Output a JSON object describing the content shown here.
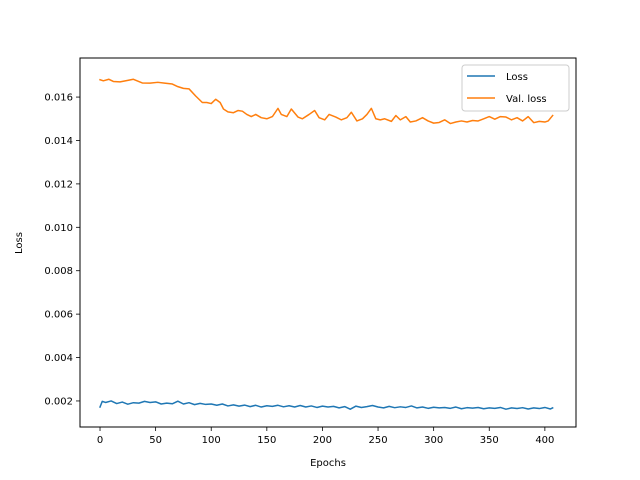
{
  "chart_data": {
    "type": "line",
    "title": "",
    "xlabel": "Epochs",
    "ylabel": "Loss",
    "xlim": [
      -18,
      428
    ],
    "ylim": [
      0.0008,
      0.0178
    ],
    "xticks": [
      0,
      50,
      100,
      150,
      200,
      250,
      300,
      350,
      400
    ],
    "yticks": [
      0.002,
      0.004,
      0.006,
      0.008,
      0.01,
      0.012,
      0.014,
      0.016
    ],
    "ytick_labels": [
      "0.002",
      "0.004",
      "0.006",
      "0.008",
      "0.010",
      "0.012",
      "0.014",
      "0.016"
    ],
    "grid": false,
    "legend_position": "top-right",
    "series": [
      {
        "name": "Loss",
        "color": "#1f77b4",
        "x": [
          0,
          2,
          5,
          10,
          15,
          20,
          25,
          30,
          35,
          40,
          45,
          50,
          55,
          60,
          65,
          70,
          75,
          80,
          85,
          90,
          95,
          100,
          105,
          110,
          115,
          120,
          125,
          130,
          135,
          140,
          145,
          150,
          155,
          160,
          165,
          170,
          175,
          180,
          185,
          190,
          195,
          200,
          205,
          210,
          215,
          220,
          225,
          230,
          235,
          240,
          245,
          250,
          255,
          260,
          265,
          270,
          275,
          280,
          285,
          290,
          295,
          300,
          305,
          310,
          315,
          320,
          325,
          330,
          335,
          340,
          345,
          350,
          355,
          360,
          365,
          370,
          375,
          380,
          385,
          390,
          395,
          400,
          405,
          407
        ],
        "values": [
          0.00172,
          0.00198,
          0.00193,
          0.002,
          0.00188,
          0.00195,
          0.00185,
          0.00192,
          0.0019,
          0.00198,
          0.00193,
          0.00196,
          0.00186,
          0.0019,
          0.00187,
          0.00199,
          0.00186,
          0.00192,
          0.00183,
          0.00189,
          0.00184,
          0.00186,
          0.0018,
          0.00186,
          0.00177,
          0.00182,
          0.00176,
          0.00181,
          0.00174,
          0.0018,
          0.00172,
          0.00178,
          0.00175,
          0.0018,
          0.00173,
          0.00178,
          0.00172,
          0.00179,
          0.00172,
          0.00177,
          0.0017,
          0.00176,
          0.00172,
          0.00175,
          0.00168,
          0.00174,
          0.00162,
          0.00176,
          0.0017,
          0.00174,
          0.00179,
          0.00172,
          0.00168,
          0.00175,
          0.00169,
          0.00173,
          0.0017,
          0.00177,
          0.00168,
          0.00172,
          0.00166,
          0.00171,
          0.00168,
          0.0017,
          0.00166,
          0.00172,
          0.00164,
          0.00169,
          0.00167,
          0.0017,
          0.00164,
          0.00168,
          0.00166,
          0.0017,
          0.00162,
          0.00168,
          0.00165,
          0.00169,
          0.00163,
          0.00168,
          0.00165,
          0.0017,
          0.00163,
          0.00168
        ]
      },
      {
        "name": "Val. loss",
        "color": "#ff7f0e",
        "x": [
          0,
          3,
          8,
          12,
          18,
          25,
          30,
          38,
          45,
          52,
          58,
          65,
          70,
          75,
          80,
          86,
          92,
          96,
          100,
          104,
          108,
          111,
          115,
          120,
          124,
          128,
          132,
          136,
          140,
          145,
          150,
          155,
          160,
          163,
          168,
          172,
          178,
          182,
          188,
          193,
          197,
          202,
          206,
          212,
          217,
          222,
          226,
          231,
          236,
          240,
          244,
          248,
          252,
          256,
          262,
          266,
          270,
          275,
          279,
          284,
          290,
          295,
          300,
          305,
          310,
          315,
          320,
          325,
          330,
          335,
          340,
          345,
          350,
          355,
          360,
          365,
          370,
          375,
          380,
          385,
          390,
          395,
          400,
          403,
          407
        ],
        "values": [
          0.0168,
          0.01675,
          0.01682,
          0.01672,
          0.0167,
          0.01677,
          0.01682,
          0.01665,
          0.01664,
          0.01668,
          0.01664,
          0.0166,
          0.01648,
          0.0164,
          0.01638,
          0.01605,
          0.01575,
          0.01575,
          0.0157,
          0.0159,
          0.01575,
          0.01545,
          0.01532,
          0.01528,
          0.01538,
          0.01535,
          0.0152,
          0.0151,
          0.0152,
          0.01505,
          0.015,
          0.0151,
          0.01548,
          0.0152,
          0.0151,
          0.01545,
          0.01508,
          0.015,
          0.0152,
          0.01538,
          0.01505,
          0.01495,
          0.0152,
          0.01508,
          0.01495,
          0.01505,
          0.0153,
          0.0149,
          0.015,
          0.0152,
          0.01548,
          0.015,
          0.01495,
          0.015,
          0.01488,
          0.01515,
          0.01495,
          0.0151,
          0.01485,
          0.0149,
          0.01505,
          0.0149,
          0.0148,
          0.01483,
          0.01495,
          0.01478,
          0.01485,
          0.0149,
          0.01485,
          0.01492,
          0.0149,
          0.015,
          0.0151,
          0.01498,
          0.0151,
          0.01508,
          0.01495,
          0.01505,
          0.0149,
          0.0151,
          0.01482,
          0.01488,
          0.01485,
          0.0149,
          0.01515
        ]
      }
    ]
  }
}
